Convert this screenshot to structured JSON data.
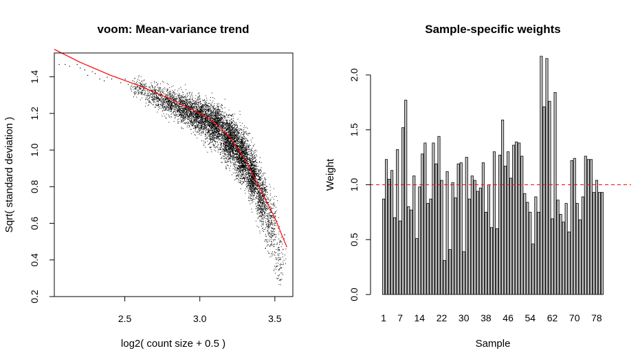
{
  "chart_data": [
    {
      "type": "scatter",
      "title": "voom: Mean-variance trend",
      "xlabel": "log2( count size + 0.5 )",
      "ylabel": "Sqrt( standard deviation )",
      "xlim": [
        2.03,
        3.62
      ],
      "ylim": [
        0.2,
        1.53
      ],
      "xticks": [
        2.5,
        3.0,
        3.5
      ],
      "xtick_labels": [
        "2.5",
        "3.0",
        "3.5"
      ],
      "yticks": [
        0.2,
        0.4,
        0.6,
        0.8,
        1.0,
        1.2,
        1.4
      ],
      "ytick_labels": [
        "0.2",
        "0.4",
        "0.6",
        "0.8",
        "1.0",
        "1.2",
        "1.4"
      ],
      "point_color": "#000000",
      "trend_color": "#ff0000",
      "trend": {
        "x": [
          2.03,
          2.2,
          2.4,
          2.6,
          2.8,
          3.0,
          3.1,
          3.2,
          3.3,
          3.35,
          3.4,
          3.45,
          3.5,
          3.55,
          3.58
        ],
        "y": [
          1.55,
          1.48,
          1.41,
          1.35,
          1.28,
          1.2,
          1.15,
          1.07,
          0.95,
          0.87,
          0.79,
          0.71,
          0.63,
          0.53,
          0.47
        ]
      },
      "points": [
        [
          2.06,
          1.47
        ],
        [
          2.1,
          1.47
        ],
        [
          2.13,
          1.46
        ],
        [
          2.18,
          1.47
        ],
        [
          2.2,
          1.45
        ],
        [
          2.23,
          1.44
        ],
        [
          2.25,
          1.41
        ],
        [
          2.28,
          1.43
        ],
        [
          2.3,
          1.42
        ],
        [
          2.33,
          1.39
        ],
        [
          2.36,
          1.38
        ],
        [
          2.38,
          1.4
        ],
        [
          2.41,
          1.39
        ],
        [
          2.44,
          1.4
        ],
        [
          2.47,
          1.37
        ],
        [
          2.5,
          1.39
        ],
        [
          2.52,
          1.36
        ],
        [
          2.55,
          1.38
        ],
        [
          2.58,
          1.35
        ],
        [
          2.6,
          1.37
        ]
      ],
      "clouds": [
        {
          "x": 2.6,
          "y": 1.34,
          "sx": 0.03,
          "sy": 0.025,
          "n": 140
        },
        {
          "x": 2.7,
          "y": 1.3,
          "sx": 0.035,
          "sy": 0.03,
          "n": 260
        },
        {
          "x": 2.8,
          "y": 1.26,
          "sx": 0.035,
          "sy": 0.035,
          "n": 420
        },
        {
          "x": 2.9,
          "y": 1.23,
          "sx": 0.035,
          "sy": 0.04,
          "n": 620
        },
        {
          "x": 3.0,
          "y": 1.19,
          "sx": 0.035,
          "sy": 0.045,
          "n": 900
        },
        {
          "x": 3.1,
          "y": 1.14,
          "sx": 0.035,
          "sy": 0.055,
          "n": 1100
        },
        {
          "x": 3.2,
          "y": 1.06,
          "sx": 0.03,
          "sy": 0.06,
          "n": 1200
        },
        {
          "x": 3.28,
          "y": 0.97,
          "sx": 0.025,
          "sy": 0.065,
          "n": 1050
        },
        {
          "x": 3.35,
          "y": 0.86,
          "sx": 0.02,
          "sy": 0.065,
          "n": 800
        },
        {
          "x": 3.41,
          "y": 0.74,
          "sx": 0.018,
          "sy": 0.07,
          "n": 500
        },
        {
          "x": 3.47,
          "y": 0.6,
          "sx": 0.02,
          "sy": 0.08,
          "n": 280
        },
        {
          "x": 3.53,
          "y": 0.42,
          "sx": 0.02,
          "sy": 0.08,
          "n": 110
        }
      ]
    },
    {
      "type": "bar",
      "title": "Sample-specific weights",
      "xlabel": "Sample",
      "ylabel": "Weight",
      "ylim": [
        0,
        2.2
      ],
      "yticks": [
        0.0,
        0.5,
        1.0,
        1.5,
        2.0
      ],
      "ytick_labels": [
        "0.0",
        "0.5",
        "1.0",
        "1.5",
        "2.0"
      ],
      "xtick_labels": [
        "1",
        "7",
        "14",
        "22",
        "30",
        "38",
        "46",
        "54",
        "62",
        "70",
        "78"
      ],
      "xtick_positions": [
        1,
        7,
        14,
        22,
        30,
        38,
        46,
        54,
        62,
        70,
        78
      ],
      "bar_fill": "#c0c0c0",
      "reference_line": {
        "y": 1.0,
        "color": "#ff0000",
        "style": "dashed"
      },
      "categories": [
        1,
        2,
        3,
        4,
        5,
        6,
        7,
        8,
        9,
        10,
        11,
        12,
        13,
        14,
        15,
        16,
        17,
        18,
        19,
        20,
        21,
        22,
        23,
        24,
        25,
        26,
        27,
        28,
        29,
        30,
        31,
        32,
        33,
        34,
        35,
        36,
        37,
        38,
        39,
        40,
        41,
        42,
        43,
        44,
        45,
        46,
        47,
        48,
        49,
        50,
        51,
        52,
        53,
        54,
        55,
        56,
        57,
        58,
        59,
        60,
        61,
        62,
        63,
        64,
        65,
        66,
        67,
        68,
        69,
        70,
        71,
        72,
        73,
        74,
        75,
        76,
        77,
        78,
        79,
        80
      ],
      "values": [
        0.87,
        1.23,
        1.05,
        1.13,
        0.7,
        1.32,
        0.67,
        1.52,
        1.77,
        0.8,
        0.77,
        1.08,
        0.51,
        0.98,
        1.28,
        1.38,
        0.83,
        0.87,
        1.38,
        1.19,
        1.44,
        1.04,
        0.31,
        1.12,
        0.41,
        1.02,
        0.88,
        1.19,
        1.2,
        0.39,
        1.25,
        0.87,
        1.08,
        1.04,
        0.94,
        0.97,
        1.2,
        0.75,
        1.0,
        0.61,
        1.3,
        0.6,
        1.27,
        1.59,
        1.17,
        1.3,
        1.06,
        1.36,
        1.39,
        1.38,
        1.26,
        0.92,
        0.84,
        0.75,
        0.46,
        0.89,
        0.75,
        2.17,
        1.71,
        2.15,
        1.76,
        0.69,
        1.84,
        0.86,
        0.73,
        0.66,
        0.83,
        0.57,
        1.22,
        1.24,
        0.83,
        0.68,
        0.89,
        1.26,
        1.23,
        1.23,
        0.93,
        1.04,
        0.93,
        0.93
      ]
    }
  ]
}
